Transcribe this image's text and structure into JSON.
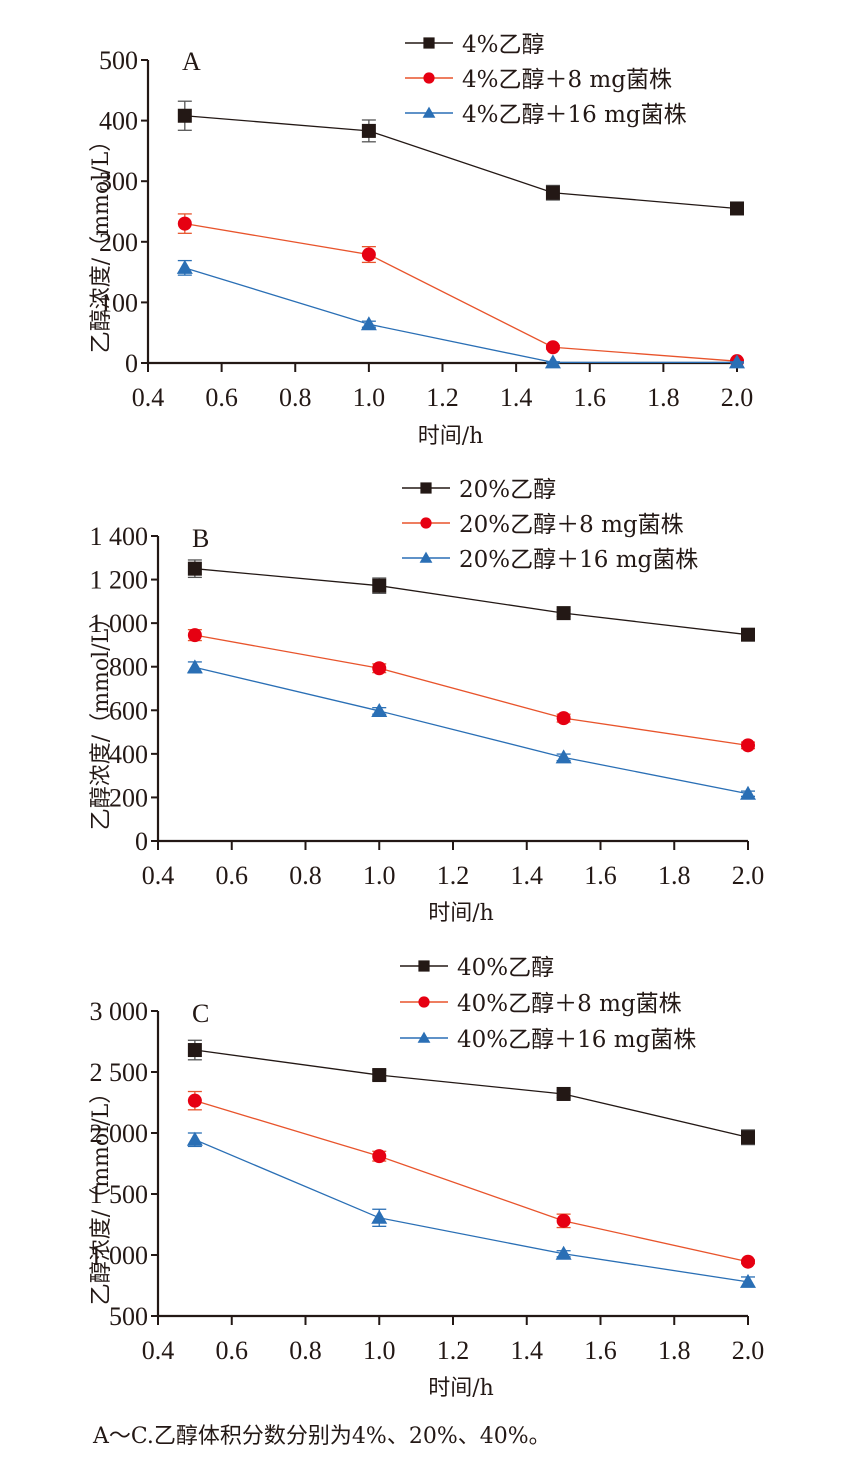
{
  "chart_data": [
    {
      "type": "line",
      "panel": "A",
      "title": "",
      "xlabel": "时间/h",
      "ylabel": "乙醇浓度/（mmol/L）",
      "xlim": [
        0.4,
        2.0
      ],
      "ylim": [
        0,
        500
      ],
      "xticks": [
        0.4,
        0.6,
        0.8,
        1.0,
        1.2,
        1.4,
        1.6,
        1.8,
        2.0
      ],
      "xtick_labels": [
        "0.4",
        "0.6",
        "0.8",
        "1.0",
        "1.2",
        "1.4",
        "1.6",
        "1.8",
        "2.0"
      ],
      "yticks": [
        0,
        100,
        200,
        300,
        400,
        500
      ],
      "ytick_labels": [
        "0",
        "100",
        "200",
        "300",
        "400",
        "500"
      ],
      "x": [
        0.5,
        1.0,
        1.5,
        2.0
      ],
      "legend_position": "top-right",
      "grid": false,
      "series": [
        {
          "name": "4%乙醇",
          "marker": "square",
          "color": "#231815",
          "line_color": "#231815",
          "values": [
            408,
            383,
            281,
            255
          ],
          "errors": [
            24,
            18,
            12,
            6
          ]
        },
        {
          "name": "4%乙醇＋8 mg菌株",
          "marker": "circle",
          "color": "#e60012",
          "line_color": "#e8542c",
          "values": [
            230,
            179,
            26,
            3
          ],
          "errors": [
            16,
            13,
            3,
            2
          ]
        },
        {
          "name": "4%乙醇＋16 mg菌株",
          "marker": "triangle",
          "color": "#2a6fb5",
          "line_color": "#2a6fb5",
          "values": [
            157,
            64,
            1,
            1
          ],
          "errors": [
            12,
            5,
            1,
            1
          ]
        }
      ]
    },
    {
      "type": "line",
      "panel": "B",
      "title": "",
      "xlabel": "时间/h",
      "ylabel": "乙醇浓度/（mmol/L）",
      "xlim": [
        0.4,
        2.0
      ],
      "ylim": [
        0,
        1400
      ],
      "xticks": [
        0.4,
        0.6,
        0.8,
        1.0,
        1.2,
        1.4,
        1.6,
        1.8,
        2.0
      ],
      "xtick_labels": [
        "0.4",
        "0.6",
        "0.8",
        "1.0",
        "1.2",
        "1.4",
        "1.6",
        "1.8",
        "2.0"
      ],
      "yticks": [
        0,
        200,
        400,
        600,
        800,
        1000,
        1200,
        1400
      ],
      "ytick_labels": [
        "0",
        "200",
        "400",
        "600",
        "800",
        "1 000",
        "1 200",
        "1 400"
      ],
      "x": [
        0.5,
        1.0,
        1.5,
        2.0
      ],
      "legend_position": "top-right",
      "grid": false,
      "series": [
        {
          "name": "20%乙醇",
          "marker": "square",
          "color": "#231815",
          "line_color": "#231815",
          "values": [
            1250,
            1172,
            1046,
            947
          ],
          "errors": [
            40,
            35,
            15,
            12
          ]
        },
        {
          "name": "20%乙醇＋8 mg菌株",
          "marker": "circle",
          "color": "#e60012",
          "line_color": "#e8542c",
          "values": [
            945,
            793,
            564,
            439
          ],
          "errors": [
            25,
            20,
            18,
            15
          ]
        },
        {
          "name": "20%乙醇＋16 mg菌株",
          "marker": "triangle",
          "color": "#2a6fb5",
          "line_color": "#2a6fb5",
          "values": [
            797,
            597,
            384,
            217
          ],
          "errors": [
            25,
            15,
            15,
            12
          ]
        }
      ]
    },
    {
      "type": "line",
      "panel": "C",
      "title": "",
      "xlabel": "时间/h",
      "ylabel": "乙醇浓度/（mmol/L）",
      "xlim": [
        0.4,
        2.0
      ],
      "ylim": [
        500,
        3000
      ],
      "xticks": [
        0.4,
        0.6,
        0.8,
        1.0,
        1.2,
        1.4,
        1.6,
        1.8,
        2.0
      ],
      "xtick_labels": [
        "0.4",
        "0.6",
        "0.8",
        "1.0",
        "1.2",
        "1.4",
        "1.6",
        "1.8",
        "2.0"
      ],
      "yticks": [
        500,
        1000,
        1500,
        2000,
        2500,
        3000
      ],
      "ytick_labels": [
        "500",
        "1 000",
        "1 500",
        "2 000",
        "2 500",
        "3 000"
      ],
      "x": [
        0.5,
        1.0,
        1.5,
        2.0
      ],
      "legend_position": "top-right",
      "grid": false,
      "series": [
        {
          "name": "40%乙醇",
          "marker": "square",
          "color": "#231815",
          "line_color": "#231815",
          "values": [
            2680,
            2475,
            2320,
            1965
          ],
          "errors": [
            80,
            40,
            30,
            60
          ]
        },
        {
          "name": "40%乙醇＋8 mg菌株",
          "marker": "circle",
          "color": "#e60012",
          "line_color": "#e8542c",
          "values": [
            2265,
            1810,
            1280,
            945
          ],
          "errors": [
            75,
            40,
            55,
            15
          ]
        },
        {
          "name": "40%乙醇＋16 mg菌株",
          "marker": "triangle",
          "color": "#2a6fb5",
          "line_color": "#2a6fb5",
          "values": [
            1945,
            1305,
            1010,
            780
          ],
          "errors": [
            55,
            70,
            25,
            40
          ]
        }
      ]
    }
  ],
  "caption": "A～C.乙醇体积分数分别为4%、20%、40%。"
}
